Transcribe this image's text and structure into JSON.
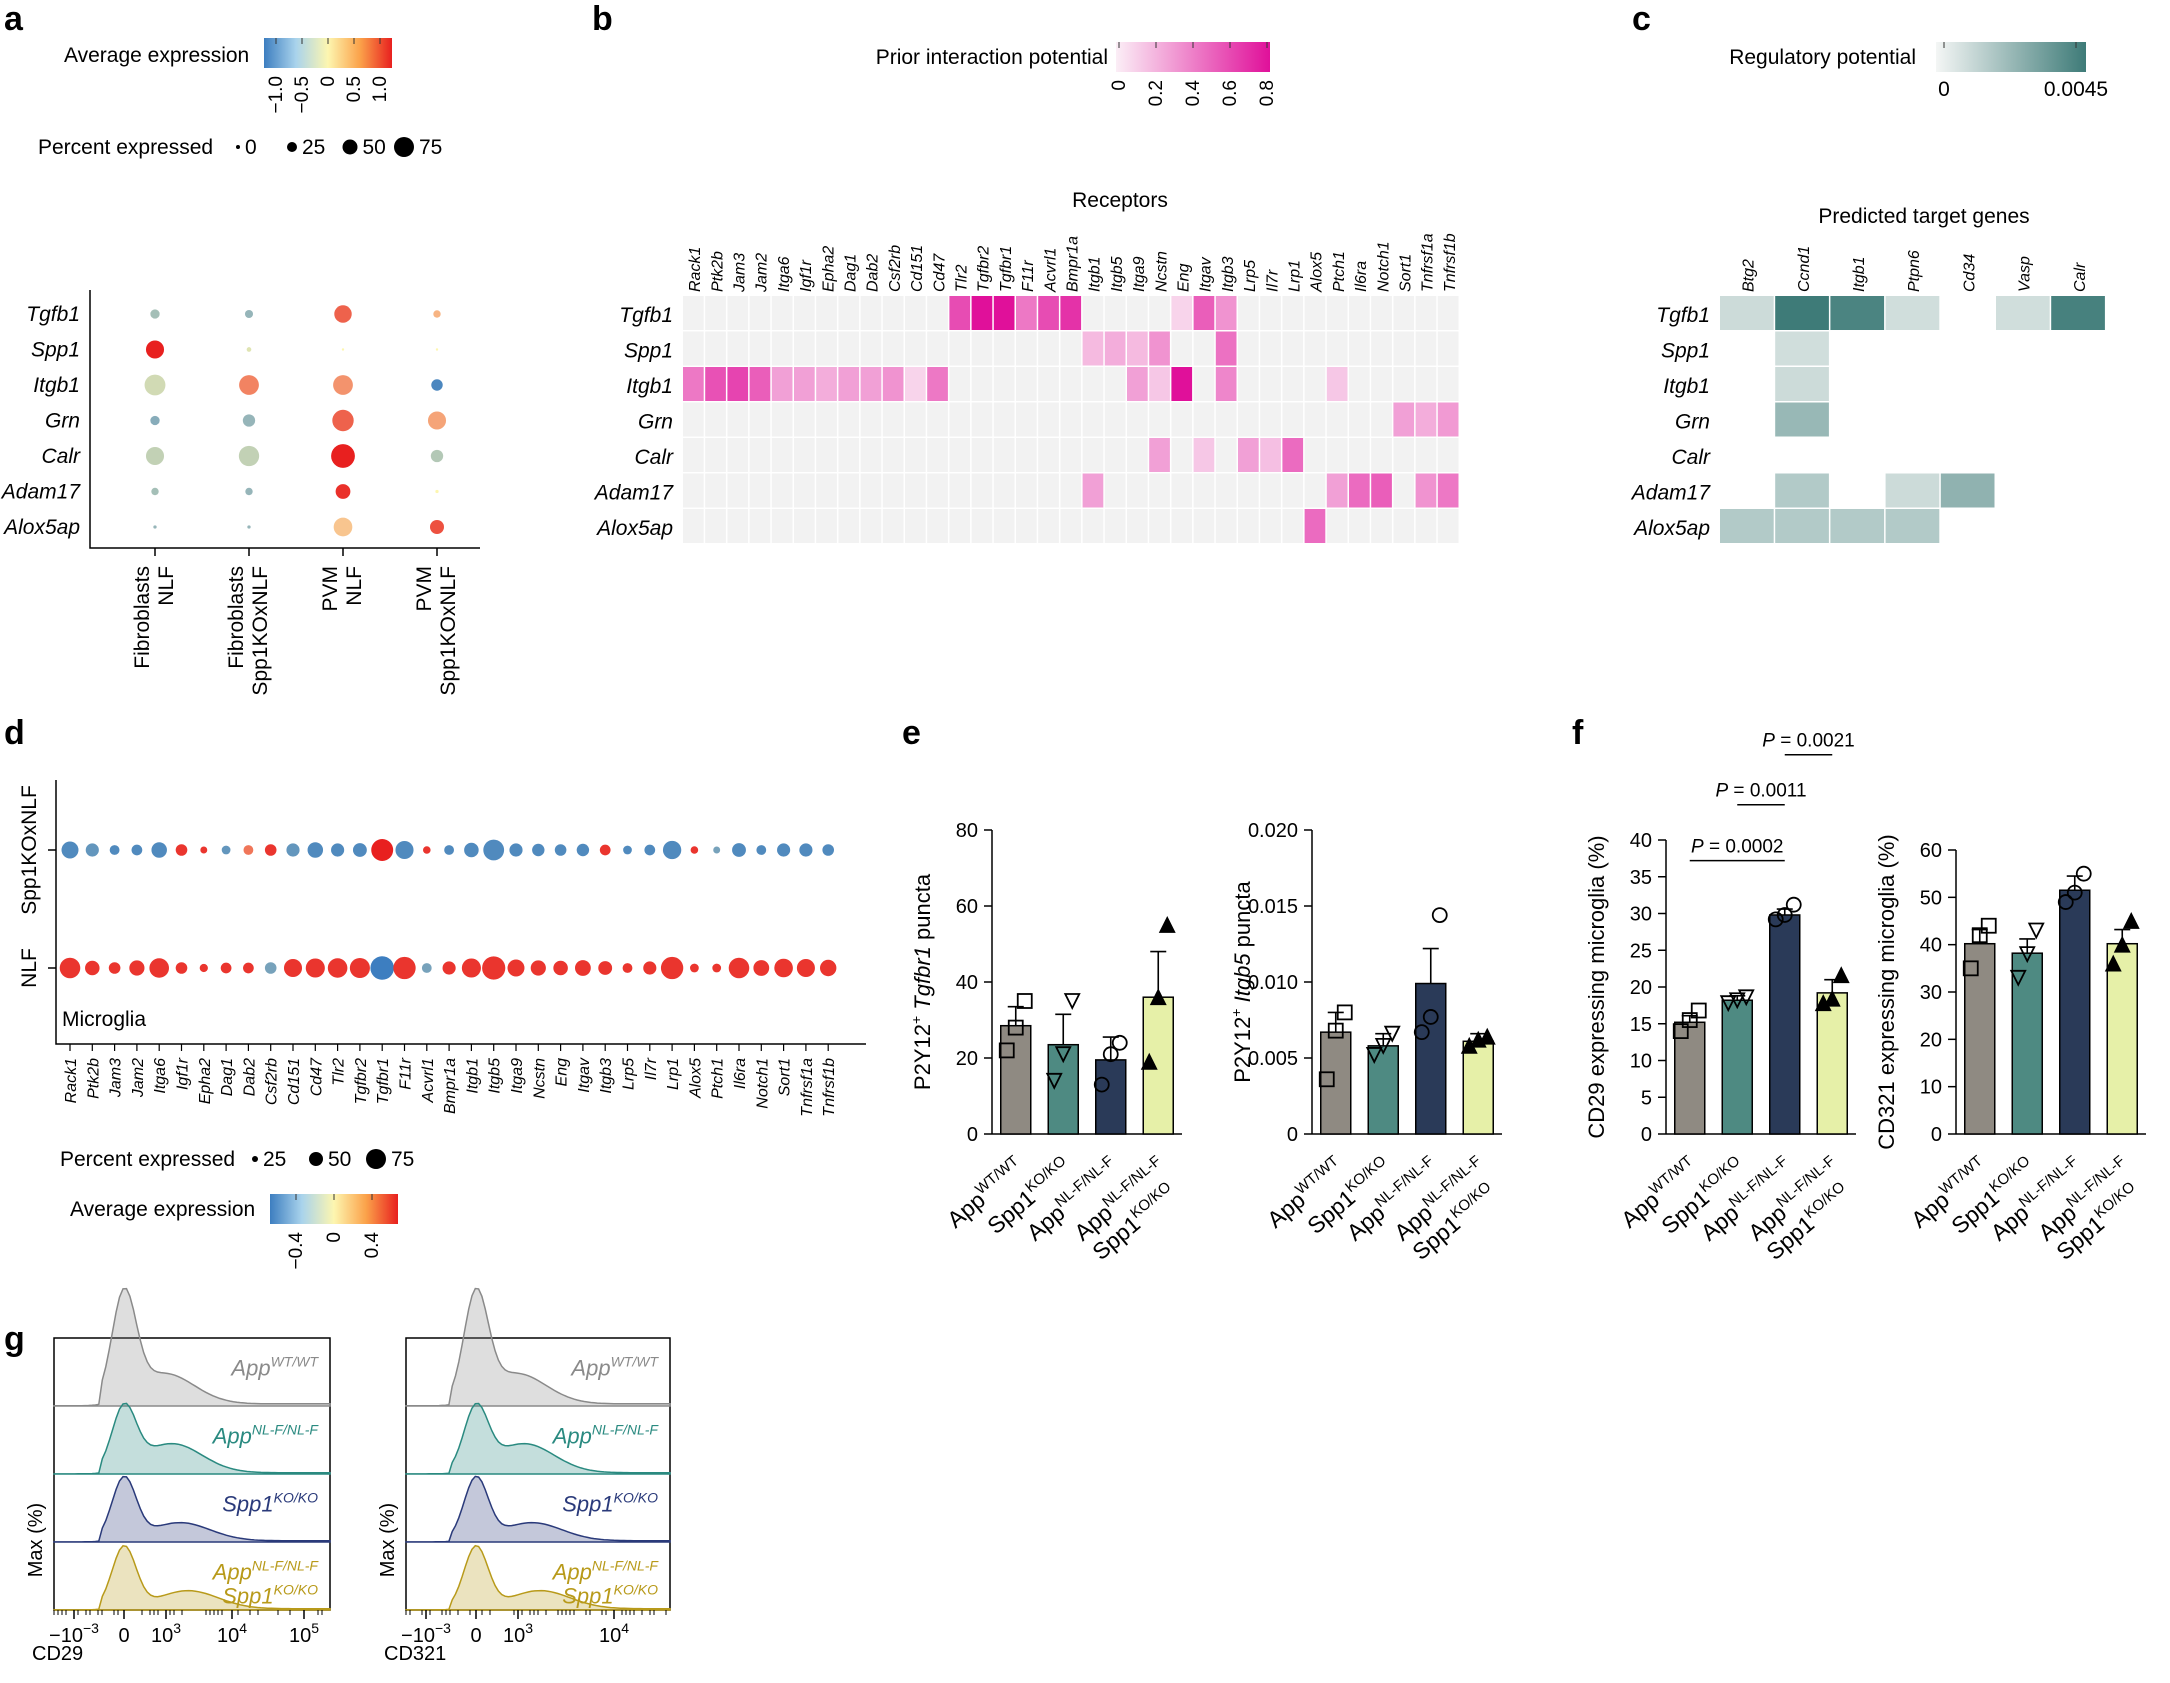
{
  "panel_letters": {
    "a": "a",
    "b": "b",
    "c": "c",
    "d": "d",
    "e": "e",
    "f": "f",
    "g": "g"
  },
  "colors": {
    "expr_low": "#3d7ec0",
    "expr_mid": "#fdf6b0",
    "expr_high": "#e8201f",
    "interaction": "#e0109a",
    "regulatory": "#3e7b78",
    "cell_empty": "#f2f2f2",
    "bar_wt": "#8f8a82",
    "bar_spp1": "#4e8a82",
    "bar_nlf": "#2a3a58",
    "bar_dko": "#e6f0a8",
    "hist_wt": "#8a8a8a",
    "hist_nlf": "#2a8a80",
    "hist_spp1": "#2a3a7a",
    "hist_dko": "#b89a1a"
  },
  "chart_data": [
    {
      "type": "dotplot",
      "panel": "a",
      "legend_expr_title": "Average expression",
      "legend_expr_ticks": [
        "−1.0",
        "−0.5",
        "0",
        "0.5",
        "1.0"
      ],
      "legend_pct_title": "Percent expressed",
      "legend_pct_ticks": [
        "0",
        "25",
        "50",
        "75"
      ],
      "genes": [
        "Tgfb1",
        "Spp1",
        "Itgb1",
        "Grn",
        "Calr",
        "Adam17",
        "Alox5ap"
      ],
      "groups": [
        {
          "line1": "Fibroblasts",
          "line2": "NLF"
        },
        {
          "line1": "Fibroblasts",
          "line2": "Spp1KOxNLF"
        },
        {
          "line1": "PVM",
          "line2": "NLF"
        },
        {
          "line1": "PVM",
          "line2": "Spp1KOxNLF"
        }
      ],
      "pct": [
        [
          8,
          6,
          28,
          5
        ],
        [
          30,
          2,
          0,
          0
        ],
        [
          40,
          36,
          36,
          12
        ],
        [
          8,
          14,
          42,
          30
        ],
        [
          30,
          38,
          52,
          14
        ],
        [
          5,
          5,
          20,
          1
        ],
        [
          1,
          1,
          32,
          18
        ]
      ],
      "expr": [
        [
          -0.6,
          -0.7,
          0.9,
          0.4
        ],
        [
          1.3,
          -0.2,
          0.0,
          0.0
        ],
        [
          -0.3,
          0.7,
          0.6,
          -1.2
        ],
        [
          -0.8,
          -0.7,
          0.9,
          0.5
        ],
        [
          -0.4,
          -0.4,
          1.3,
          -0.5
        ],
        [
          -0.6,
          -0.7,
          1.2,
          0.0
        ],
        [
          -0.7,
          -0.7,
          0.3,
          1.0
        ]
      ]
    },
    {
      "type": "heatmap",
      "panel": "b",
      "legend_title": "Prior interaction potential",
      "legend_ticks": [
        "0",
        "0.2",
        "0.4",
        "0.6",
        "0.8"
      ],
      "col_title": "Receptors",
      "rows": [
        "Tgfb1",
        "Spp1",
        "Itgb1",
        "Grn",
        "Calr",
        "Adam17",
        "Alox5ap"
      ],
      "cols": [
        "Rack1",
        "Ptk2b",
        "Jam3",
        "Jam2",
        "Itga6",
        "Igf1r",
        "Epha2",
        "Dag1",
        "Dab2",
        "Csf2rb",
        "Cd151",
        "Cd47",
        "Tlr2",
        "Tgfbr2",
        "Tgfbr1",
        "F11r",
        "Acvrl1",
        "Bmpr1a",
        "Itgb1",
        "Itgb5",
        "Itga9",
        "Ncstn",
        "Eng",
        "Itgav",
        "Itgb3",
        "Lrp5",
        "Il7r",
        "Lrp1",
        "Alox5",
        "Ptch1",
        "Il6ra",
        "Notch1",
        "Sort1",
        "Tnfrsf1a",
        "Tnfrsf1b"
      ],
      "values": [
        [
          0,
          0,
          0,
          0,
          0,
          0,
          0,
          0,
          0,
          0,
          0,
          0,
          0.62,
          0.85,
          0.88,
          0.45,
          0.62,
          0.72,
          0,
          0,
          0,
          0,
          0.1,
          0.55,
          0.35,
          0,
          0,
          0,
          0,
          0,
          0,
          0,
          0,
          0,
          0
        ],
        [
          0,
          0,
          0,
          0,
          0,
          0,
          0,
          0,
          0,
          0,
          0,
          0,
          0,
          0,
          0,
          0,
          0,
          0,
          0.2,
          0.25,
          0.2,
          0.35,
          0,
          0,
          0.48,
          0,
          0,
          0,
          0,
          0,
          0,
          0,
          0,
          0,
          0
        ],
        [
          0.45,
          0.6,
          0.65,
          0.55,
          0.3,
          0.3,
          0.25,
          0.3,
          0.3,
          0.35,
          0.1,
          0.45,
          0,
          0,
          0,
          0,
          0,
          0,
          0,
          0,
          0.3,
          0.15,
          0.85,
          0,
          0.4,
          0,
          0,
          0,
          0,
          0.15,
          0,
          0,
          0,
          0,
          0
        ],
        [
          0,
          0,
          0,
          0,
          0,
          0,
          0,
          0,
          0,
          0,
          0,
          0,
          0,
          0,
          0,
          0,
          0,
          0,
          0,
          0,
          0,
          0,
          0,
          0,
          0,
          0,
          0,
          0,
          0,
          0,
          0,
          0,
          0.3,
          0.25,
          0.32
        ],
        [
          0,
          0,
          0,
          0,
          0,
          0,
          0,
          0,
          0,
          0,
          0,
          0,
          0,
          0,
          0,
          0,
          0,
          0,
          0,
          0,
          0,
          0.3,
          0,
          0.15,
          0,
          0.3,
          0.18,
          0.5,
          0,
          0,
          0,
          0,
          0,
          0,
          0
        ],
        [
          0,
          0,
          0,
          0,
          0,
          0,
          0,
          0,
          0,
          0,
          0,
          0,
          0,
          0,
          0,
          0,
          0,
          0,
          0.3,
          0,
          0,
          0,
          0,
          0,
          0,
          0,
          0,
          0,
          0,
          0.3,
          0.5,
          0.55,
          0,
          0.35,
          0.45
        ],
        [
          0,
          0,
          0,
          0,
          0,
          0,
          0,
          0,
          0,
          0,
          0,
          0,
          0,
          0,
          0,
          0,
          0,
          0,
          0,
          0,
          0,
          0,
          0,
          0,
          0,
          0,
          0,
          0,
          0.5,
          0,
          0,
          0,
          0,
          0,
          0
        ]
      ]
    },
    {
      "type": "heatmap",
      "panel": "c",
      "legend_title": "Regulatory potential",
      "legend_ticks": [
        "0",
        "0.0045"
      ],
      "col_title": "Predicted target genes",
      "rows": [
        "Tgfb1",
        "Spp1",
        "Itgb1",
        "Grn",
        "Calr",
        "Adam17",
        "Alox5ap"
      ],
      "cols": [
        "Btg2",
        "Ccnd1",
        "Itgb1",
        "Ptpn6",
        "Cd34",
        "Vasp",
        "Calr"
      ],
      "values": [
        [
          0.0012,
          0.0045,
          0.0042,
          0.0011,
          null,
          0.0011,
          0.0043
        ],
        [
          null,
          0.0011,
          null,
          null,
          null,
          null,
          null
        ],
        [
          null,
          0.0012,
          null,
          null,
          null,
          null,
          null
        ],
        [
          null,
          0.0024,
          null,
          null,
          null,
          null,
          null
        ],
        [
          null,
          null,
          null,
          null,
          null,
          null,
          null
        ],
        [
          null,
          0.0018,
          null,
          0.0012,
          0.0026,
          null,
          null
        ],
        [
          0.0018,
          0.0018,
          0.0018,
          0.0018,
          null,
          null,
          null
        ]
      ]
    },
    {
      "type": "dotplot",
      "panel": "d",
      "cell_type": "Microglia",
      "rows": [
        "Spp1KOxNLF",
        "NLF"
      ],
      "genes": [
        "Rack1",
        "Ptk2b",
        "Jam3",
        "Jam2",
        "Itga6",
        "Igf1r",
        "Epha2",
        "Dag1",
        "Dab2",
        "Csf2rb",
        "Cd151",
        "Cd47",
        "Tlr2",
        "Tgfbr2",
        "Tgfbr1",
        "F11r",
        "Acvrl1",
        "Bmpr1a",
        "Itgb1",
        "Itgb5",
        "Itga9",
        "Ncstn",
        "Eng",
        "Itgav",
        "Itgb3",
        "Lrp5",
        "Il7r",
        "Lrp1",
        "Alox5",
        "Ptch1",
        "Il6ra",
        "Notch1",
        "Sort1",
        "Tnfrsf1a",
        "Tnfrsf1b"
      ],
      "pct_ko": [
        30,
        18,
        10,
        12,
        25,
        14,
        5,
        8,
        10,
        14,
        18,
        25,
        18,
        20,
        50,
        34,
        6,
        10,
        22,
        45,
        18,
        16,
        14,
        16,
        12,
        8,
        12,
        35,
        6,
        5,
        20,
        10,
        18,
        18,
        14
      ],
      "expr_ko": [
        -0.45,
        -0.4,
        -0.45,
        -0.45,
        -0.45,
        0.45,
        0.45,
        -0.4,
        0.3,
        0.45,
        -0.4,
        -0.45,
        -0.45,
        -0.45,
        0.5,
        -0.45,
        0.45,
        -0.45,
        -0.45,
        -0.45,
        -0.45,
        -0.45,
        -0.45,
        -0.45,
        0.45,
        -0.45,
        -0.45,
        -0.45,
        0.45,
        -0.35,
        -0.45,
        -0.45,
        -0.45,
        -0.45,
        -0.45
      ],
      "pct_nlf": [
        44,
        22,
        14,
        24,
        40,
        14,
        7,
        12,
        12,
        14,
        34,
        38,
        40,
        42,
        58,
        52,
        10,
        18,
        38,
        56,
        30,
        24,
        22,
        26,
        20,
        10,
        18,
        52,
        8,
        8,
        44,
        26,
        36,
        34,
        28
      ],
      "expr_nlf": [
        0.45,
        0.45,
        0.45,
        0.45,
        0.45,
        0.45,
        0.45,
        0.45,
        0.45,
        -0.35,
        0.45,
        0.45,
        0.45,
        0.45,
        -0.5,
        0.45,
        -0.35,
        0.45,
        0.45,
        0.45,
        0.45,
        0.45,
        0.45,
        0.45,
        0.45,
        0.45,
        0.45,
        0.45,
        0.45,
        0.45,
        0.45,
        0.45,
        0.45,
        0.45,
        0.45
      ],
      "legend_pct_title": "Percent expressed",
      "legend_pct_ticks": [
        "25",
        "50",
        "75"
      ],
      "legend_expr_title": "Average expression",
      "legend_expr_ticks": [
        "−0.4",
        "0",
        "0.4"
      ]
    },
    {
      "type": "bar",
      "panel": "e-left",
      "ylabel_parts": {
        "a": "P2Y12",
        "b": "+",
        "c": " ",
        "d": "Tgfbr1",
        "e": " puncta"
      },
      "ylim": [
        0,
        80
      ],
      "yticks": [
        "0",
        "20",
        "40",
        "60",
        "80"
      ],
      "values": [
        28.5,
        23.5,
        19.5,
        36
      ],
      "sem": [
        5,
        8,
        6,
        12
      ],
      "points": [
        [
          22,
          28,
          35
        ],
        [
          14,
          21,
          35
        ],
        [
          13,
          21,
          24
        ],
        [
          19,
          36,
          55
        ]
      ],
      "markers": [
        "square",
        "tri-down-open",
        "circle",
        "tri-up-filled"
      ]
    },
    {
      "type": "bar",
      "panel": "e-right",
      "ylabel_parts": {
        "a": "P2Y12",
        "b": "+",
        "c": " ",
        "d": "Itgb5",
        "e": " puncta"
      },
      "ylim": [
        0,
        0.02
      ],
      "yticks": [
        "0",
        "0.005",
        "0.010",
        "0.015",
        "0.020"
      ],
      "values": [
        0.0067,
        0.0058,
        0.0099,
        0.0061
      ],
      "sem": [
        0.0013,
        0.0008,
        0.0023,
        0.0005
      ],
      "points": [
        [
          0.0036,
          0.0068,
          0.008
        ],
        [
          0.0052,
          0.0058,
          0.0066
        ],
        [
          0.0067,
          0.0077,
          0.0144
        ],
        [
          0.0058,
          0.0062,
          0.0064
        ]
      ],
      "markers": [
        "square",
        "tri-down-open",
        "circle",
        "tri-up-filled"
      ]
    },
    {
      "type": "bar",
      "panel": "f-left",
      "ylabel": "CD29 expressing microglia (%)",
      "ylim": [
        0,
        40
      ],
      "yticks": [
        "0",
        "5",
        "10",
        "15",
        "20",
        "25",
        "30",
        "35",
        "40"
      ],
      "values": [
        15.2,
        18.2,
        29.8,
        19.2
      ],
      "sem": [
        0.9,
        0.6,
        0.8,
        1.8
      ],
      "points": [
        [
          14.0,
          15.5,
          16.8
        ],
        [
          17.8,
          18.2,
          18.6
        ],
        [
          29.2,
          29.8,
          31.2
        ],
        [
          17.8,
          18.4,
          21.6
        ]
      ],
      "markers": [
        "square",
        "tri-down-open",
        "circle",
        "tri-up-filled"
      ],
      "brackets": [
        {
          "from": 0,
          "to": 2,
          "y": 37.2,
          "label": "0.0002"
        },
        {
          "from": 1,
          "to": 2,
          "y": 44.8,
          "label": "0.0011"
        },
        {
          "from": 2,
          "to": 3,
          "y": 51.6,
          "label": "0.0021"
        }
      ],
      "p_prefix": "P",
      "p_eq": " = "
    },
    {
      "type": "bar",
      "panel": "f-right",
      "ylabel": "CD321 expressing microglia (%)",
      "ylim": [
        0,
        60
      ],
      "yticks": [
        "0",
        "10",
        "20",
        "30",
        "40",
        "50",
        "60"
      ],
      "values": [
        40.2,
        38.2,
        51.5,
        40.2
      ],
      "sem": [
        3,
        3,
        3,
        3
      ],
      "points": [
        [
          35,
          42,
          44
        ],
        [
          33,
          38,
          43
        ],
        [
          49,
          51,
          55
        ],
        [
          36,
          40,
          45
        ]
      ],
      "markers": [
        "square",
        "tri-down-open",
        "circle",
        "tri-up-filled"
      ]
    },
    {
      "type": "histogram",
      "panel": "g",
      "plots": [
        {
          "xlabel": "CD29",
          "ticks": [
            "0",
            "10",
            "10",
            "10"
          ],
          "exps": [
            "−3",
            "",
            "3",
            "4",
            "5"
          ]
        },
        {
          "xlabel": "CD321",
          "ticks": [
            "0",
            "10",
            "10"
          ],
          "exps": [
            "−3",
            "",
            "3",
            "4"
          ]
        }
      ],
      "ylabel": "Max (%)",
      "legend": [
        {
          "base": "App",
          "sup": "WT/WT"
        },
        {
          "base": "App",
          "sup": "NL-F/NL-F"
        },
        {
          "base": "Spp1",
          "sup": "KO/KO"
        },
        {
          "base": "App",
          "sup": "NL-F/NL-F",
          "base2": "Spp1",
          "sup2": "KO/KO"
        }
      ]
    }
  ],
  "genotypes": [
    {
      "base": "App",
      "sup": "WT/WT"
    },
    {
      "base": "Spp1",
      "sup": "KO/KO"
    },
    {
      "base": "App",
      "sup": "NL-F/NL-F"
    },
    {
      "base": "App",
      "sup": "NL-F/NL-F",
      "base2": "Spp1",
      "sup2": "KO/KO"
    }
  ],
  "tick_ten": "10",
  "minus_ten_label": "−10"
}
